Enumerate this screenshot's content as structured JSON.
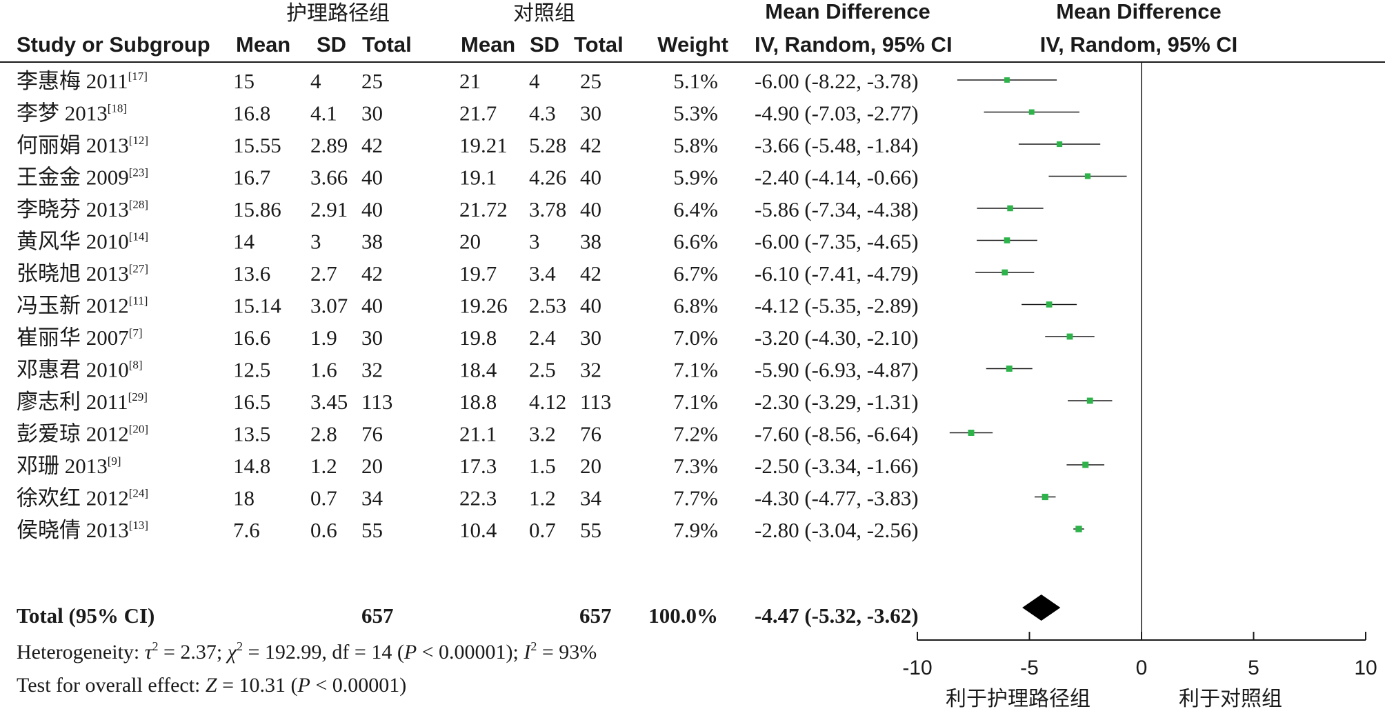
{
  "header": {
    "group1_name": "护理路径组",
    "group2_name": "对照组",
    "md_title_left": "Mean Difference",
    "md_title_right": "Mean Difference",
    "col_study": "Study or Subgroup",
    "col_mean1": "Mean",
    "col_sd1": "SD",
    "col_total1": "Total",
    "col_mean2": "Mean",
    "col_sd2": "SD",
    "col_total2": "Total",
    "col_weight": "Weight",
    "col_ci_left": "IV, Random, 95% CI",
    "col_ci_right": "IV, Random, 95% CI"
  },
  "studies": [
    {
      "name": "李惠梅 2011",
      "ref": "[17]",
      "mean1": "15",
      "sd1": "4",
      "n1": "25",
      "mean2": "21",
      "sd2": "4",
      "n2": "25",
      "weight": "5.1%",
      "ci_text": "-6.00 (-8.22, -3.78)"
    },
    {
      "name": "李梦 2013",
      "ref": "[18]",
      "mean1": "16.8",
      "sd1": "4.1",
      "n1": "30",
      "mean2": "21.7",
      "sd2": "4.3",
      "n2": "30",
      "weight": "5.3%",
      "ci_text": "-4.90 (-7.03, -2.77)"
    },
    {
      "name": "何丽娟 2013",
      "ref": "[12]",
      "mean1": "15.55",
      "sd1": "2.89",
      "n1": "42",
      "mean2": "19.21",
      "sd2": "5.28",
      "n2": "42",
      "weight": "5.8%",
      "ci_text": "-3.66 (-5.48, -1.84)"
    },
    {
      "name": "王金金 2009",
      "ref": "[23]",
      "mean1": "16.7",
      "sd1": "3.66",
      "n1": "40",
      "mean2": "19.1",
      "sd2": "4.26",
      "n2": "40",
      "weight": "5.9%",
      "ci_text": "-2.40 (-4.14, -0.66)"
    },
    {
      "name": "李晓芬 2013",
      "ref": "[28]",
      "mean1": "15.86",
      "sd1": "2.91",
      "n1": "40",
      "mean2": "21.72",
      "sd2": "3.78",
      "n2": "40",
      "weight": "6.4%",
      "ci_text": "-5.86 (-7.34, -4.38)"
    },
    {
      "name": "黄风华 2010",
      "ref": "[14]",
      "mean1": "14",
      "sd1": "3",
      "n1": "38",
      "mean2": "20",
      "sd2": "3",
      "n2": "38",
      "weight": "6.6%",
      "ci_text": "-6.00 (-7.35, -4.65)"
    },
    {
      "name": "张晓旭 2013",
      "ref": "[27]",
      "mean1": "13.6",
      "sd1": "2.7",
      "n1": "42",
      "mean2": "19.7",
      "sd2": "3.4",
      "n2": "42",
      "weight": "6.7%",
      "ci_text": "-6.10 (-7.41, -4.79)"
    },
    {
      "name": "冯玉新 2012",
      "ref": "[11]",
      "mean1": "15.14",
      "sd1": "3.07",
      "n1": "40",
      "mean2": "19.26",
      "sd2": "2.53",
      "n2": "40",
      "weight": "6.8%",
      "ci_text": "-4.12 (-5.35, -2.89)"
    },
    {
      "name": "崔丽华 2007",
      "ref": "[7]",
      "mean1": "16.6",
      "sd1": "1.9",
      "n1": "30",
      "mean2": "19.8",
      "sd2": "2.4",
      "n2": "30",
      "weight": "7.0%",
      "ci_text": "-3.20 (-4.30, -2.10)"
    },
    {
      "name": "邓惠君 2010",
      "ref": "[8]",
      "mean1": "12.5",
      "sd1": "1.6",
      "n1": "32",
      "mean2": "18.4",
      "sd2": "2.5",
      "n2": "32",
      "weight": "7.1%",
      "ci_text": "-5.90 (-6.93, -4.87)"
    },
    {
      "name": "廖志利 2011",
      "ref": "[29]",
      "mean1": "16.5",
      "sd1": "3.45",
      "n1": "113",
      "mean2": "18.8",
      "sd2": "4.12",
      "n2": "113",
      "weight": "7.1%",
      "ci_text": "-2.30 (-3.29, -1.31)"
    },
    {
      "name": "彭爱琼 2012",
      "ref": "[20]",
      "mean1": "13.5",
      "sd1": "2.8",
      "n1": "76",
      "mean2": "21.1",
      "sd2": "3.2",
      "n2": "76",
      "weight": "7.2%",
      "ci_text": "-7.60 (-8.56, -6.64)"
    },
    {
      "name": "邓珊 2013",
      "ref": "[9]",
      "mean1": "14.8",
      "sd1": "1.2",
      "n1": "20",
      "mean2": "17.3",
      "sd2": "1.5",
      "n2": "20",
      "weight": "7.3%",
      "ci_text": "-2.50 (-3.34, -1.66)"
    },
    {
      "name": "徐欢红 2012",
      "ref": "[24]",
      "mean1": "18",
      "sd1": "0.7",
      "n1": "34",
      "mean2": "22.3",
      "sd2": "1.2",
      "n2": "34",
      "weight": "7.7%",
      "ci_text": "-4.30 (-4.77, -3.83)"
    },
    {
      "name": "侯晓倩 2013",
      "ref": "[13]",
      "mean1": "7.6",
      "sd1": "0.6",
      "n1": "55",
      "mean2": "10.4",
      "sd2": "0.7",
      "n2": "55",
      "weight": "7.9%",
      "ci_text": "-2.80 (-3.04, -2.56)"
    }
  ],
  "total": {
    "label": "Total (95% CI)",
    "n1": "657",
    "n2": "657",
    "weight": "100.0%",
    "ci_text": "-4.47 (-5.32, -3.62)"
  },
  "heterogeneity": {
    "prefix": "Heterogeneity: ",
    "tau_sym": "τ",
    "tau_value": " = 2.37; ",
    "chi_sym": "χ",
    "chi_value": " = 192.99, df = 14 (",
    "p_sym": "P",
    "p_value": " < 0.00001); ",
    "i_sym": "I",
    "i_value": " = 93%",
    "sq": "2"
  },
  "overall": {
    "prefix": "Test for overall effect: ",
    "z_sym": "Z",
    "z_value": " = 10.31 (",
    "p_sym": "P",
    "p_value": " < 0.00001)"
  },
  "axis": {
    "tick_labels": [
      "-10",
      "-5",
      "0",
      "5",
      "10"
    ],
    "favours_left": "利于护理路径组",
    "favours_right": "利于对照组"
  },
  "colors": {
    "point": "#2db34a",
    "diamond": "#000000",
    "line": "#1a1a1a"
  },
  "chart_data": {
    "type": "forest",
    "xlim": [
      -10,
      10
    ],
    "ticks": [
      -10,
      -5,
      0,
      5,
      10
    ],
    "reference_line": 0,
    "points": [
      {
        "study": "李惠梅 2011",
        "md": -6.0,
        "lo": -8.22,
        "hi": -3.78,
        "weight": 5.1
      },
      {
        "study": "李梦 2013",
        "md": -4.9,
        "lo": -7.03,
        "hi": -2.77,
        "weight": 5.3
      },
      {
        "study": "何丽娟 2013",
        "md": -3.66,
        "lo": -5.48,
        "hi": -1.84,
        "weight": 5.8
      },
      {
        "study": "王金金 2009",
        "md": -2.4,
        "lo": -4.14,
        "hi": -0.66,
        "weight": 5.9
      },
      {
        "study": "李晓芬 2013",
        "md": -5.86,
        "lo": -7.34,
        "hi": -4.38,
        "weight": 6.4
      },
      {
        "study": "黄风华 2010",
        "md": -6.0,
        "lo": -7.35,
        "hi": -4.65,
        "weight": 6.6
      },
      {
        "study": "张晓旭 2013",
        "md": -6.1,
        "lo": -7.41,
        "hi": -4.79,
        "weight": 6.7
      },
      {
        "study": "冯玉新 2012",
        "md": -4.12,
        "lo": -5.35,
        "hi": -2.89,
        "weight": 6.8
      },
      {
        "study": "崔丽华 2007",
        "md": -3.2,
        "lo": -4.3,
        "hi": -2.1,
        "weight": 7.0
      },
      {
        "study": "邓惠君 2010",
        "md": -5.9,
        "lo": -6.93,
        "hi": -4.87,
        "weight": 7.1
      },
      {
        "study": "廖志利 2011",
        "md": -2.3,
        "lo": -3.29,
        "hi": -1.31,
        "weight": 7.1
      },
      {
        "study": "彭爱琼 2012",
        "md": -7.6,
        "lo": -8.56,
        "hi": -6.64,
        "weight": 7.2
      },
      {
        "study": "邓珊 2013",
        "md": -2.5,
        "lo": -3.34,
        "hi": -1.66,
        "weight": 7.3
      },
      {
        "study": "徐欢红 2012",
        "md": -4.3,
        "lo": -4.77,
        "hi": -3.83,
        "weight": 7.7
      },
      {
        "study": "侯晓倩 2013",
        "md": -2.8,
        "lo": -3.04,
        "hi": -2.56,
        "weight": 7.9
      }
    ],
    "pooled": {
      "md": -4.47,
      "lo": -5.32,
      "hi": -3.62
    }
  }
}
